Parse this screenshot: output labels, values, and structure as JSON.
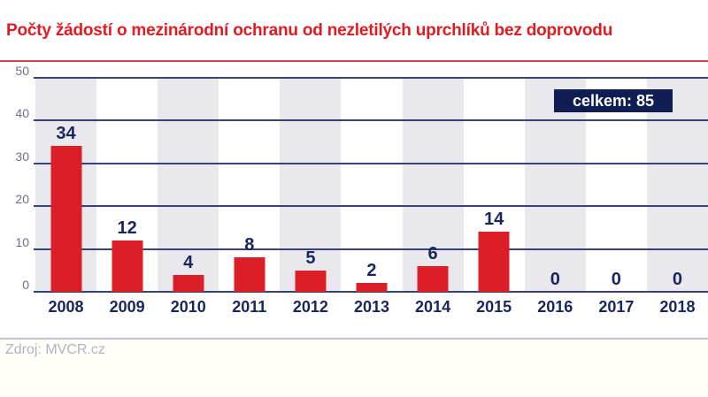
{
  "page": {
    "title": "Počty žádostí o mezinárodní ochranu od nezletilých uprchlíků bez doprovodu",
    "total_badge": "celkem: 85",
    "source": "Zdroj: MVCR.cz"
  },
  "colors": {
    "title_red": "#e11b22",
    "bar_red": "#dc1f26",
    "label_navy": "#19265e",
    "badge_bg": "#101d52",
    "gridline_navy": "#36437a",
    "tick_gray": "#6e6e8c",
    "band_gray": "#e9e9ed",
    "red_rule": "#dd4348",
    "gray_rule": "#c3c3cc",
    "source_gray": "#b2b2c6"
  },
  "chart_data": {
    "type": "bar",
    "title": "Počty žádostí o mezinárodní ochranu od nezletilých uprchlíků bez doprovodu",
    "categories": [
      "2008",
      "2009",
      "2010",
      "2011",
      "2012",
      "2013",
      "2014",
      "2015",
      "2016",
      "2017",
      "2018"
    ],
    "values": [
      34,
      12,
      4,
      8,
      5,
      2,
      6,
      14,
      0,
      0,
      0
    ],
    "xlabel": "",
    "ylabel": "",
    "ylim": [
      0,
      50
    ],
    "yticks": [
      0,
      10,
      20,
      30,
      40,
      50
    ],
    "grid": "horizontal",
    "legend_position": "none",
    "annotation": "celkem: 85",
    "bar_color": "#dc1f26",
    "alternating_bands": true,
    "banded_categories": [
      "2008",
      "2010",
      "2012",
      "2014",
      "2016",
      "2018"
    ]
  }
}
